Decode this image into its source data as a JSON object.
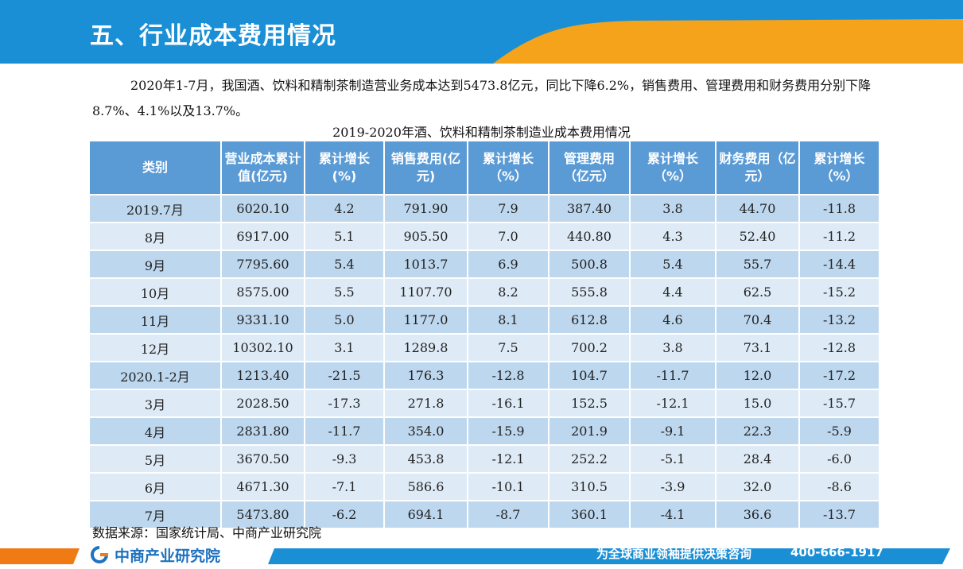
{
  "header": {
    "title": "五、行业成本费用情况"
  },
  "paragraph": "2020年1-7月，我国酒、饮料和精制茶制造营业务成本达到5473.8亿元，同比下降6.2%，销售费用、管理费用和财务费用分别下降8.7%、4.1%以及13.7%。",
  "table": {
    "title": "2019-2020年酒、饮料和精制茶制造业成本费用情况",
    "headers": [
      "类别",
      "营业成本累计值(亿元)",
      "累计增长(%)",
      "销售费用(亿元)",
      "累计增长（%）",
      "管理费用（亿元）",
      "累计增长（%）",
      "财务费用（亿元）",
      "累计增长（%）"
    ],
    "rows": [
      [
        "2019.7月",
        "6020.10",
        "4.2",
        "791.90",
        "7.9",
        "387.40",
        "3.8",
        "44.70",
        "-11.8"
      ],
      [
        "8月",
        "6917.00",
        "5.1",
        "905.50",
        "7.0",
        "440.80",
        "4.3",
        "52.40",
        "-11.2"
      ],
      [
        "9月",
        "7795.60",
        "5.4",
        "1013.7",
        "6.9",
        "500.8",
        "5.4",
        "55.7",
        "-14.4"
      ],
      [
        "10月",
        "8575.00",
        "5.5",
        "1107.70",
        "8.2",
        "555.8",
        "4.4",
        "62.5",
        "-15.2"
      ],
      [
        "11月",
        "9331.10",
        "5.0",
        "1177.0",
        "8.1",
        "612.8",
        "4.6",
        "70.4",
        "-13.2"
      ],
      [
        "12月",
        "10302.10",
        "3.1",
        "1289.8",
        "7.5",
        "700.2",
        "3.8",
        "73.1",
        "-12.8"
      ],
      [
        "2020.1-2月",
        "1213.40",
        "-21.5",
        "176.3",
        "-12.8",
        "104.7",
        "-11.7",
        "12.0",
        "-17.2"
      ],
      [
        "3月",
        "2028.50",
        "-17.3",
        "271.8",
        "-16.1",
        "152.5",
        "-12.1",
        "15.0",
        "-15.7"
      ],
      [
        "4月",
        "2831.80",
        "-11.7",
        "354.0",
        "-15.9",
        "201.9",
        "-9.1",
        "22.3",
        "-5.9"
      ],
      [
        "5月",
        "3670.50",
        "-9.3",
        "453.8",
        "-12.1",
        "252.2",
        "-5.1",
        "28.4",
        "-6.0"
      ],
      [
        "6月",
        "4671.30",
        "-7.1",
        "586.6",
        "-10.1",
        "310.5",
        "-3.9",
        "32.0",
        "-8.6"
      ],
      [
        "7月",
        "5473.80",
        "-6.2",
        "694.1",
        "-8.7",
        "360.1",
        "-4.1",
        "36.6",
        "-13.7"
      ]
    ],
    "row_shades": [
      "dark",
      "light",
      "dark",
      "light",
      "dark",
      "light",
      "dark",
      "light",
      "dark",
      "light",
      "light",
      "dark"
    ]
  },
  "source": "数据来源：国家统计局、中商产业研究院",
  "footer": {
    "logo_text": "中商产业研究院",
    "slogan": "为全球商业领袖提供决策咨询",
    "phone": "400-666-1917"
  },
  "colors": {
    "header_blue": "#1a8fd6",
    "header_orange": "#f5a31a",
    "table_header": "#5b9bd5",
    "row_dark": "#bdd7ee",
    "row_light": "#deebf7",
    "footer_blue": "#1a8fd6",
    "footer_orange": "#f07a14",
    "logo_blue": "#1e72bf"
  }
}
